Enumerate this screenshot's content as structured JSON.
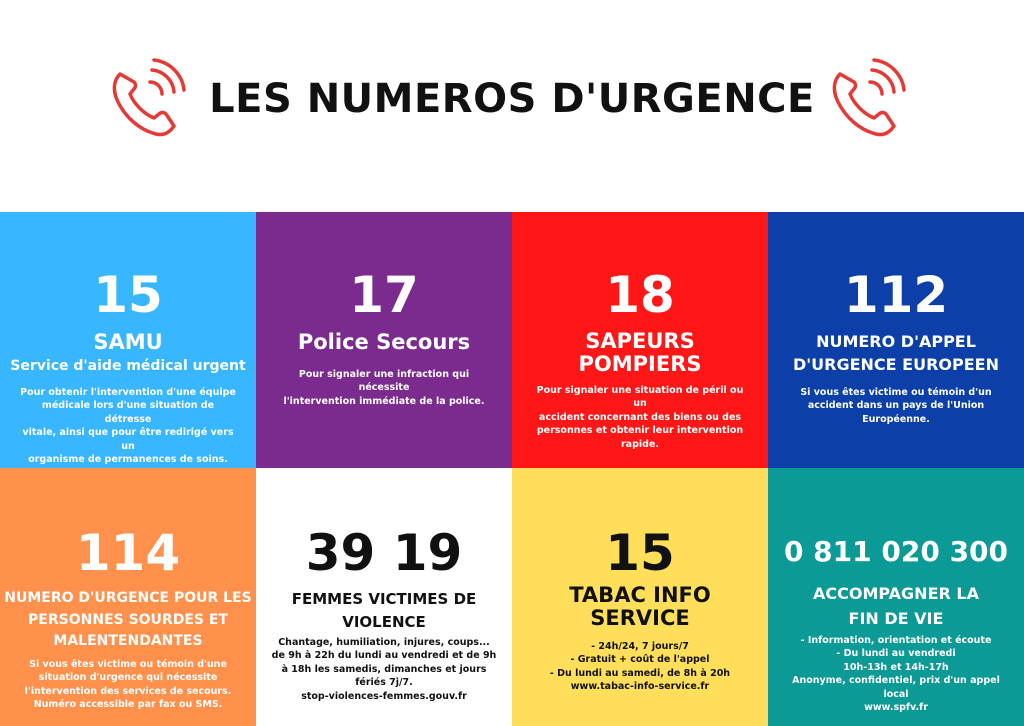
{
  "header": {
    "title": "LES NUMEROS D'URGENCE",
    "icon": "phone-ringing-icon",
    "icon_color": "#e53935"
  },
  "cards": {
    "samu": {
      "number": "15",
      "title": "SAMU",
      "subtitle": "Service d'aide médical urgent",
      "desc": [
        "Pour obtenir l'intervention d'une équipe",
        "médicale lors d'une situation de détresse",
        "vitale, ainsi que pour être redirigé vers un",
        "organisme de permanences de soins."
      ],
      "color": "#38b6ff"
    },
    "police": {
      "number": "17",
      "title": "Police Secours",
      "desc": [
        "Pour signaler une infraction qui nécessite",
        "l'intervention immédiate de la police."
      ],
      "color": "#7b2b8e"
    },
    "pompiers": {
      "number": "18",
      "title_lines": [
        "SAPEURS",
        "POMPIERS"
      ],
      "desc": [
        "Pour signaler une situation de péril ou un",
        "accident concernant des biens ou des",
        "personnes et obtenir leur intervention",
        "rapide."
      ],
      "color": "#ff1616"
    },
    "europe": {
      "number": "112",
      "title_lines": [
        "NUMERO D'APPEL",
        "D'URGENCE EUROPEEN"
      ],
      "desc": [
        "Si vous êtes victime ou témoin d'un",
        "accident dans un pays de l'Union",
        "Européenne."
      ],
      "color": "#0c3fa8"
    },
    "sourds": {
      "number": "114",
      "title_lines": [
        "NUMERO D'URGENCE POUR LES",
        "PERSONNES SOURDES ET",
        "MALENTENDANTES"
      ],
      "desc": [
        "Si vous êtes victime ou témoin d'une",
        "situation d'urgence qui nécessite",
        "l'intervention des services de secours.",
        "Numéro accessible par fax ou SMS."
      ],
      "color": "#ff914d"
    },
    "violences": {
      "number": "39 19",
      "title_lines": [
        "FEMMES VICTIMES DE",
        "VIOLENCE"
      ],
      "desc": [
        "Chantage, humiliation, injures, coups...",
        "de 9h à 22h du lundi au vendredi et de 9h",
        "à 18h les samedis, dimanches et jours",
        "fériés 7j/7.",
        "stop-violences-femmes.gouv.fr"
      ],
      "color": "#ffffff"
    },
    "tabac": {
      "number": "15",
      "title_lines": [
        "TABAC INFO",
        "SERVICE"
      ],
      "desc": [
        "- 24h/24, 7 jours/7",
        "- Gratuit + coût de l'appel",
        "- Du lundi au samedi, de 8h à 20h",
        "www.tabac-info-service.fr"
      ],
      "color": "#ffde59"
    },
    "findevie": {
      "number": "0 811 020 300",
      "title_lines": [
        "ACCOMPAGNER LA",
        "FIN DE VIE"
      ],
      "desc": [
        "- Information, orientation et écoute",
        "- Du lundi au vendredi",
        "10h-13h et 14h-17h",
        "Anonyme, confidentiel, prix d'un appel",
        "local",
        "www.spfv.fr"
      ],
      "color": "#0b9a96"
    }
  }
}
